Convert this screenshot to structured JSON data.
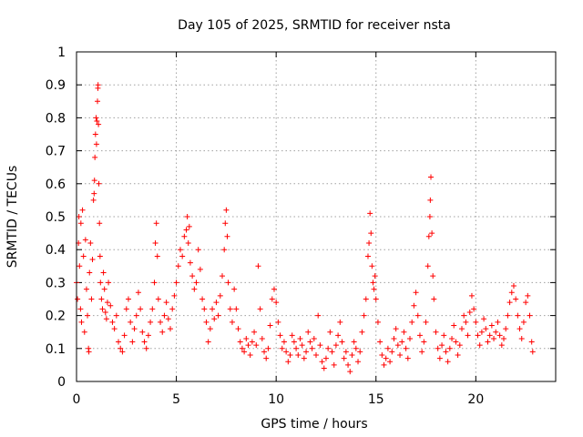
{
  "chart_data": {
    "type": "scatter",
    "title": "Day 105 of 2025, SRMTID for receiver nsta",
    "xlabel": "GPS time / hours",
    "ylabel": "SRMTID / TECUs",
    "xlim": [
      0,
      24
    ],
    "ylim": [
      0,
      1
    ],
    "xticks": [
      0,
      5,
      10,
      15,
      20
    ],
    "xtick_labels": [
      "0",
      "5",
      "10",
      "15",
      "20"
    ],
    "yticks": [
      0,
      0.1,
      0.2,
      0.3,
      0.4,
      0.5,
      0.6,
      0.7,
      0.8,
      0.9,
      1
    ],
    "ytick_labels": [
      "0",
      "0.1",
      "0.2",
      "0.3",
      "0.4",
      "0.5",
      "0.6",
      "0.7",
      "0.8",
      "0.9",
      "1"
    ],
    "grid": true,
    "marker": "+",
    "color": "#ff0000",
    "series": [
      {
        "name": "nsta",
        "points": [
          [
            0.0,
            0.3
          ],
          [
            0.05,
            0.25
          ],
          [
            0.1,
            0.42
          ],
          [
            0.12,
            0.5
          ],
          [
            0.15,
            0.35
          ],
          [
            0.2,
            0.22
          ],
          [
            0.22,
            0.48
          ],
          [
            0.25,
            0.18
          ],
          [
            0.3,
            0.52
          ],
          [
            0.35,
            0.38
          ],
          [
            0.4,
            0.15
          ],
          [
            0.45,
            0.43
          ],
          [
            0.5,
            0.28
          ],
          [
            0.55,
            0.2
          ],
          [
            0.6,
            0.1
          ],
          [
            0.62,
            0.09
          ],
          [
            0.65,
            0.33
          ],
          [
            0.7,
            0.42
          ],
          [
            0.75,
            0.25
          ],
          [
            0.8,
            0.37
          ],
          [
            0.85,
            0.55
          ],
          [
            0.88,
            0.57
          ],
          [
            0.9,
            0.61
          ],
          [
            0.92,
            0.68
          ],
          [
            0.95,
            0.75
          ],
          [
            0.98,
            0.8
          ],
          [
            1.0,
            0.72
          ],
          [
            1.02,
            0.79
          ],
          [
            1.05,
            0.85
          ],
          [
            1.07,
            0.89
          ],
          [
            1.08,
            0.9
          ],
          [
            1.1,
            0.78
          ],
          [
            1.12,
            0.6
          ],
          [
            1.15,
            0.48
          ],
          [
            1.18,
            0.38
          ],
          [
            1.2,
            0.3
          ],
          [
            1.25,
            0.25
          ],
          [
            1.3,
            0.22
          ],
          [
            1.35,
            0.33
          ],
          [
            1.4,
            0.28
          ],
          [
            1.45,
            0.21
          ],
          [
            1.5,
            0.19
          ],
          [
            1.55,
            0.24
          ],
          [
            1.6,
            0.3
          ],
          [
            1.7,
            0.23
          ],
          [
            1.8,
            0.18
          ],
          [
            1.9,
            0.16
          ],
          [
            2.0,
            0.2
          ],
          [
            2.1,
            0.12
          ],
          [
            2.2,
            0.1
          ],
          [
            2.3,
            0.09
          ],
          [
            2.4,
            0.14
          ],
          [
            2.5,
            0.22
          ],
          [
            2.6,
            0.25
          ],
          [
            2.7,
            0.18
          ],
          [
            2.8,
            0.12
          ],
          [
            2.9,
            0.16
          ],
          [
            3.0,
            0.2
          ],
          [
            3.1,
            0.27
          ],
          [
            3.2,
            0.22
          ],
          [
            3.3,
            0.15
          ],
          [
            3.4,
            0.12
          ],
          [
            3.5,
            0.1
          ],
          [
            3.6,
            0.14
          ],
          [
            3.7,
            0.18
          ],
          [
            3.8,
            0.22
          ],
          [
            3.9,
            0.3
          ],
          [
            3.95,
            0.42
          ],
          [
            4.0,
            0.48
          ],
          [
            4.05,
            0.38
          ],
          [
            4.1,
            0.25
          ],
          [
            4.2,
            0.18
          ],
          [
            4.3,
            0.15
          ],
          [
            4.4,
            0.2
          ],
          [
            4.5,
            0.24
          ],
          [
            4.6,
            0.19
          ],
          [
            4.7,
            0.16
          ],
          [
            4.8,
            0.22
          ],
          [
            4.9,
            0.26
          ],
          [
            5.0,
            0.3
          ],
          [
            5.1,
            0.35
          ],
          [
            5.2,
            0.4
          ],
          [
            5.3,
            0.38
          ],
          [
            5.4,
            0.44
          ],
          [
            5.5,
            0.46
          ],
          [
            5.55,
            0.5
          ],
          [
            5.6,
            0.42
          ],
          [
            5.65,
            0.47
          ],
          [
            5.7,
            0.36
          ],
          [
            5.8,
            0.32
          ],
          [
            5.9,
            0.28
          ],
          [
            6.0,
            0.3
          ],
          [
            6.1,
            0.4
          ],
          [
            6.2,
            0.34
          ],
          [
            6.3,
            0.25
          ],
          [
            6.4,
            0.22
          ],
          [
            6.5,
            0.18
          ],
          [
            6.6,
            0.12
          ],
          [
            6.7,
            0.16
          ],
          [
            6.8,
            0.22
          ],
          [
            6.9,
            0.19
          ],
          [
            7.0,
            0.24
          ],
          [
            7.1,
            0.2
          ],
          [
            7.2,
            0.26
          ],
          [
            7.3,
            0.32
          ],
          [
            7.4,
            0.4
          ],
          [
            7.45,
            0.48
          ],
          [
            7.5,
            0.52
          ],
          [
            7.55,
            0.44
          ],
          [
            7.6,
            0.3
          ],
          [
            7.7,
            0.22
          ],
          [
            7.8,
            0.18
          ],
          [
            7.9,
            0.28
          ],
          [
            8.0,
            0.22
          ],
          [
            8.1,
            0.16
          ],
          [
            8.2,
            0.12
          ],
          [
            8.3,
            0.1
          ],
          [
            8.4,
            0.09
          ],
          [
            8.5,
            0.13
          ],
          [
            8.6,
            0.11
          ],
          [
            8.7,
            0.08
          ],
          [
            8.8,
            0.12
          ],
          [
            8.9,
            0.15
          ],
          [
            9.0,
            0.11
          ],
          [
            9.1,
            0.35
          ],
          [
            9.2,
            0.22
          ],
          [
            9.3,
            0.13
          ],
          [
            9.4,
            0.09
          ],
          [
            9.5,
            0.07
          ],
          [
            9.6,
            0.1
          ],
          [
            9.7,
            0.17
          ],
          [
            9.8,
            0.25
          ],
          [
            9.9,
            0.28
          ],
          [
            10.0,
            0.24
          ],
          [
            10.1,
            0.18
          ],
          [
            10.2,
            0.14
          ],
          [
            10.3,
            0.1
          ],
          [
            10.4,
            0.12
          ],
          [
            10.5,
            0.09
          ],
          [
            10.6,
            0.06
          ],
          [
            10.7,
            0.08
          ],
          [
            10.8,
            0.14
          ],
          [
            10.9,
            0.12
          ],
          [
            11.0,
            0.1
          ],
          [
            11.1,
            0.08
          ],
          [
            11.2,
            0.13
          ],
          [
            11.3,
            0.11
          ],
          [
            11.4,
            0.07
          ],
          [
            11.5,
            0.09
          ],
          [
            11.6,
            0.15
          ],
          [
            11.7,
            0.12
          ],
          [
            11.8,
            0.1
          ],
          [
            11.9,
            0.13
          ],
          [
            12.0,
            0.08
          ],
          [
            12.1,
            0.2
          ],
          [
            12.2,
            0.11
          ],
          [
            12.3,
            0.06
          ],
          [
            12.4,
            0.04
          ],
          [
            12.5,
            0.07
          ],
          [
            12.6,
            0.1
          ],
          [
            12.7,
            0.15
          ],
          [
            12.8,
            0.09
          ],
          [
            12.9,
            0.05
          ],
          [
            13.0,
            0.11
          ],
          [
            13.1,
            0.14
          ],
          [
            13.2,
            0.18
          ],
          [
            13.3,
            0.12
          ],
          [
            13.4,
            0.07
          ],
          [
            13.5,
            0.09
          ],
          [
            13.6,
            0.05
          ],
          [
            13.7,
            0.03
          ],
          [
            13.8,
            0.08
          ],
          [
            13.9,
            0.12
          ],
          [
            14.0,
            0.1
          ],
          [
            14.1,
            0.06
          ],
          [
            14.2,
            0.09
          ],
          [
            14.3,
            0.15
          ],
          [
            14.4,
            0.2
          ],
          [
            14.5,
            0.25
          ],
          [
            14.6,
            0.38
          ],
          [
            14.65,
            0.42
          ],
          [
            14.7,
            0.51
          ],
          [
            14.75,
            0.45
          ],
          [
            14.8,
            0.35
          ],
          [
            14.85,
            0.3
          ],
          [
            14.9,
            0.28
          ],
          [
            14.95,
            0.32
          ],
          [
            15.0,
            0.25
          ],
          [
            15.1,
            0.18
          ],
          [
            15.2,
            0.12
          ],
          [
            15.3,
            0.08
          ],
          [
            15.4,
            0.05
          ],
          [
            15.5,
            0.07
          ],
          [
            15.6,
            0.1
          ],
          [
            15.7,
            0.06
          ],
          [
            15.8,
            0.09
          ],
          [
            15.9,
            0.13
          ],
          [
            16.0,
            0.16
          ],
          [
            16.1,
            0.11
          ],
          [
            16.2,
            0.08
          ],
          [
            16.3,
            0.12
          ],
          [
            16.4,
            0.15
          ],
          [
            16.5,
            0.1
          ],
          [
            16.6,
            0.07
          ],
          [
            16.7,
            0.13
          ],
          [
            16.8,
            0.18
          ],
          [
            16.9,
            0.23
          ],
          [
            17.0,
            0.27
          ],
          [
            17.1,
            0.2
          ],
          [
            17.2,
            0.14
          ],
          [
            17.3,
            0.09
          ],
          [
            17.4,
            0.12
          ],
          [
            17.5,
            0.18
          ],
          [
            17.6,
            0.35
          ],
          [
            17.65,
            0.44
          ],
          [
            17.7,
            0.5
          ],
          [
            17.72,
            0.55
          ],
          [
            17.75,
            0.62
          ],
          [
            17.8,
            0.45
          ],
          [
            17.85,
            0.32
          ],
          [
            17.9,
            0.25
          ],
          [
            18.0,
            0.15
          ],
          [
            18.1,
            0.1
          ],
          [
            18.2,
            0.07
          ],
          [
            18.3,
            0.11
          ],
          [
            18.4,
            0.14
          ],
          [
            18.5,
            0.09
          ],
          [
            18.6,
            0.06
          ],
          [
            18.7,
            0.1
          ],
          [
            18.8,
            0.13
          ],
          [
            18.9,
            0.17
          ],
          [
            19.0,
            0.12
          ],
          [
            19.1,
            0.08
          ],
          [
            19.2,
            0.11
          ],
          [
            19.3,
            0.16
          ],
          [
            19.4,
            0.2
          ],
          [
            19.5,
            0.18
          ],
          [
            19.6,
            0.14
          ],
          [
            19.7,
            0.21
          ],
          [
            19.8,
            0.26
          ],
          [
            19.9,
            0.22
          ],
          [
            20.0,
            0.18
          ],
          [
            20.1,
            0.14
          ],
          [
            20.2,
            0.11
          ],
          [
            20.3,
            0.15
          ],
          [
            20.4,
            0.19
          ],
          [
            20.5,
            0.16
          ],
          [
            20.6,
            0.12
          ],
          [
            20.7,
            0.14
          ],
          [
            20.8,
            0.17
          ],
          [
            20.9,
            0.13
          ],
          [
            21.0,
            0.15
          ],
          [
            21.1,
            0.18
          ],
          [
            21.2,
            0.14
          ],
          [
            21.3,
            0.11
          ],
          [
            21.4,
            0.13
          ],
          [
            21.5,
            0.16
          ],
          [
            21.6,
            0.2
          ],
          [
            21.7,
            0.24
          ],
          [
            21.8,
            0.27
          ],
          [
            21.9,
            0.29
          ],
          [
            22.0,
            0.25
          ],
          [
            22.1,
            0.2
          ],
          [
            22.2,
            0.16
          ],
          [
            22.3,
            0.13
          ],
          [
            22.4,
            0.18
          ],
          [
            22.5,
            0.24
          ],
          [
            22.6,
            0.26
          ],
          [
            22.7,
            0.2
          ],
          [
            22.8,
            0.12
          ],
          [
            22.85,
            0.09
          ]
        ]
      }
    ]
  }
}
